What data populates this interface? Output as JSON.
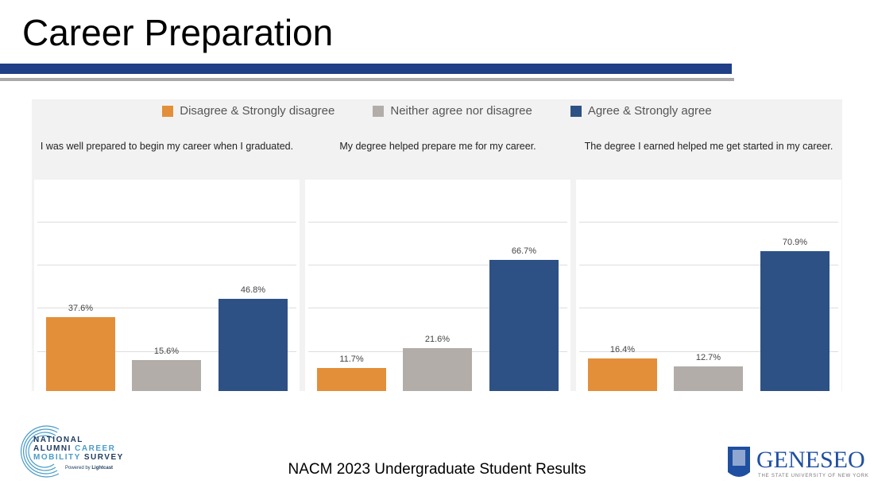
{
  "title": "Career Preparation",
  "footer": "NACM 2023 Undergraduate Student Results",
  "logos": {
    "left": "NATIONAL ALUMNI CAREER MOBILITY SURVEY Powered by Lightcast",
    "right": "GENESEO THE STATE UNIVERSITY OF NEW YORK 1871"
  },
  "chart_data": {
    "type": "bar",
    "legend": [
      {
        "name": "Disagree & Strongly disagree",
        "color": "#e38f39"
      },
      {
        "name": "Neither agree nor disagree",
        "color": "#b3ada9"
      },
      {
        "name": "Agree & Strongly agree",
        "color": "#2d5185"
      }
    ],
    "legend_position": "top",
    "grid": true,
    "panels": [
      {
        "title": "I was well prepared to begin my career when I graduated.",
        "values": [
          37.6,
          15.6,
          46.8
        ],
        "labels": [
          "37.6%",
          "15.6%",
          "46.8%"
        ]
      },
      {
        "title": "My degree helped prepare me for my career.",
        "values": [
          11.7,
          21.6,
          66.7
        ],
        "labels": [
          "11.7%",
          "21.6%",
          "66.7%"
        ]
      },
      {
        "title": "The degree I earned helped me get started in my career.",
        "values": [
          16.4,
          12.7,
          70.9
        ],
        "labels": [
          "16.4%",
          "12.7%",
          "70.9%"
        ]
      }
    ]
  }
}
